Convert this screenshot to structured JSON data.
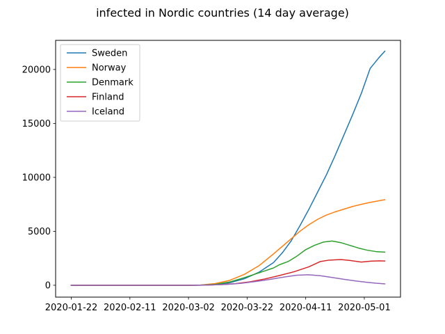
{
  "chart_data": {
    "type": "line",
    "title": "infected in  Nordic countries (14 day average)",
    "xlabel": "",
    "ylabel": "",
    "x_ticks": [
      "2020-01-22",
      "2020-02-11",
      "2020-03-02",
      "2020-03-22",
      "2020-04-11",
      "2020-05-01"
    ],
    "y_ticks": [
      "0",
      "5000",
      "10000",
      "15000",
      "20000"
    ],
    "ylim": [
      -1100,
      22700
    ],
    "grid": false,
    "legend_position": "top-left",
    "x_start": "2020-01-22",
    "series": [
      {
        "name": "Sweden",
        "color": "#1f77b4",
        "points": [
          [
            "2020-01-22",
            0
          ],
          [
            "2020-02-11",
            0
          ],
          [
            "2020-03-02",
            0
          ],
          [
            "2020-03-06",
            5
          ],
          [
            "2020-03-11",
            60
          ],
          [
            "2020-03-16",
            230
          ],
          [
            "2020-03-21",
            600
          ],
          [
            "2020-03-26",
            1200
          ],
          [
            "2020-03-31",
            2100
          ],
          [
            "2020-04-03",
            3000
          ],
          [
            "2020-04-06",
            4100
          ],
          [
            "2020-04-09",
            5500
          ],
          [
            "2020-04-12",
            7000
          ],
          [
            "2020-04-15",
            8600
          ],
          [
            "2020-04-18",
            10200
          ],
          [
            "2020-04-21",
            12000
          ],
          [
            "2020-04-24",
            13900
          ],
          [
            "2020-04-27",
            15800
          ],
          [
            "2020-04-30",
            17800
          ],
          [
            "2020-05-03",
            20100
          ],
          [
            "2020-05-06",
            21100
          ],
          [
            "2020-05-08",
            21700
          ]
        ]
      },
      {
        "name": "Norway",
        "color": "#ff7f0e",
        "points": [
          [
            "2020-01-22",
            0
          ],
          [
            "2020-02-11",
            0
          ],
          [
            "2020-03-02",
            0
          ],
          [
            "2020-03-06",
            20
          ],
          [
            "2020-03-11",
            150
          ],
          [
            "2020-03-16",
            450
          ],
          [
            "2020-03-21",
            1000
          ],
          [
            "2020-03-26",
            1800
          ],
          [
            "2020-03-31",
            2900
          ],
          [
            "2020-04-03",
            3600
          ],
          [
            "2020-04-06",
            4300
          ],
          [
            "2020-04-09",
            5000
          ],
          [
            "2020-04-12",
            5600
          ],
          [
            "2020-04-15",
            6100
          ],
          [
            "2020-04-18",
            6500
          ],
          [
            "2020-04-21",
            6800
          ],
          [
            "2020-04-24",
            7050
          ],
          [
            "2020-04-27",
            7300
          ],
          [
            "2020-04-30",
            7500
          ],
          [
            "2020-05-03",
            7680
          ],
          [
            "2020-05-06",
            7830
          ],
          [
            "2020-05-08",
            7930
          ]
        ]
      },
      {
        "name": "Denmark",
        "color": "#2ca02c",
        "points": [
          [
            "2020-01-22",
            0
          ],
          [
            "2020-02-11",
            0
          ],
          [
            "2020-03-02",
            0
          ],
          [
            "2020-03-06",
            10
          ],
          [
            "2020-03-11",
            80
          ],
          [
            "2020-03-16",
            300
          ],
          [
            "2020-03-21",
            700
          ],
          [
            "2020-03-26",
            1150
          ],
          [
            "2020-03-31",
            1600
          ],
          [
            "2020-04-02",
            1900
          ],
          [
            "2020-04-05",
            2200
          ],
          [
            "2020-04-08",
            2700
          ],
          [
            "2020-04-11",
            3300
          ],
          [
            "2020-04-14",
            3700
          ],
          [
            "2020-04-17",
            4000
          ],
          [
            "2020-04-20",
            4100
          ],
          [
            "2020-04-23",
            3950
          ],
          [
            "2020-04-26",
            3700
          ],
          [
            "2020-04-29",
            3450
          ],
          [
            "2020-05-02",
            3250
          ],
          [
            "2020-05-05",
            3120
          ],
          [
            "2020-05-08",
            3070
          ]
        ]
      },
      {
        "name": "Finland",
        "color": "#d62728",
        "points": [
          [
            "2020-01-22",
            0
          ],
          [
            "2020-02-11",
            0
          ],
          [
            "2020-03-02",
            0
          ],
          [
            "2020-03-08",
            10
          ],
          [
            "2020-03-13",
            60
          ],
          [
            "2020-03-18",
            150
          ],
          [
            "2020-03-23",
            320
          ],
          [
            "2020-03-28",
            580
          ],
          [
            "2020-04-02",
            900
          ],
          [
            "2020-04-07",
            1250
          ],
          [
            "2020-04-12",
            1700
          ],
          [
            "2020-04-16",
            2200
          ],
          [
            "2020-04-19",
            2330
          ],
          [
            "2020-04-23",
            2380
          ],
          [
            "2020-04-26",
            2300
          ],
          [
            "2020-04-30",
            2150
          ],
          [
            "2020-05-03",
            2230
          ],
          [
            "2020-05-06",
            2260
          ],
          [
            "2020-05-08",
            2250
          ]
        ]
      },
      {
        "name": "Iceland",
        "color": "#9467bd",
        "points": [
          [
            "2020-01-22",
            0
          ],
          [
            "2020-02-11",
            0
          ],
          [
            "2020-03-02",
            0
          ],
          [
            "2020-03-10",
            30
          ],
          [
            "2020-03-15",
            80
          ],
          [
            "2020-03-20",
            180
          ],
          [
            "2020-03-25",
            350
          ],
          [
            "2020-03-30",
            550
          ],
          [
            "2020-04-04",
            780
          ],
          [
            "2020-04-08",
            930
          ],
          [
            "2020-04-12",
            970
          ],
          [
            "2020-04-16",
            880
          ],
          [
            "2020-04-20",
            720
          ],
          [
            "2020-04-24",
            550
          ],
          [
            "2020-04-28",
            400
          ],
          [
            "2020-05-02",
            270
          ],
          [
            "2020-05-05",
            190
          ],
          [
            "2020-05-08",
            130
          ]
        ]
      }
    ]
  }
}
